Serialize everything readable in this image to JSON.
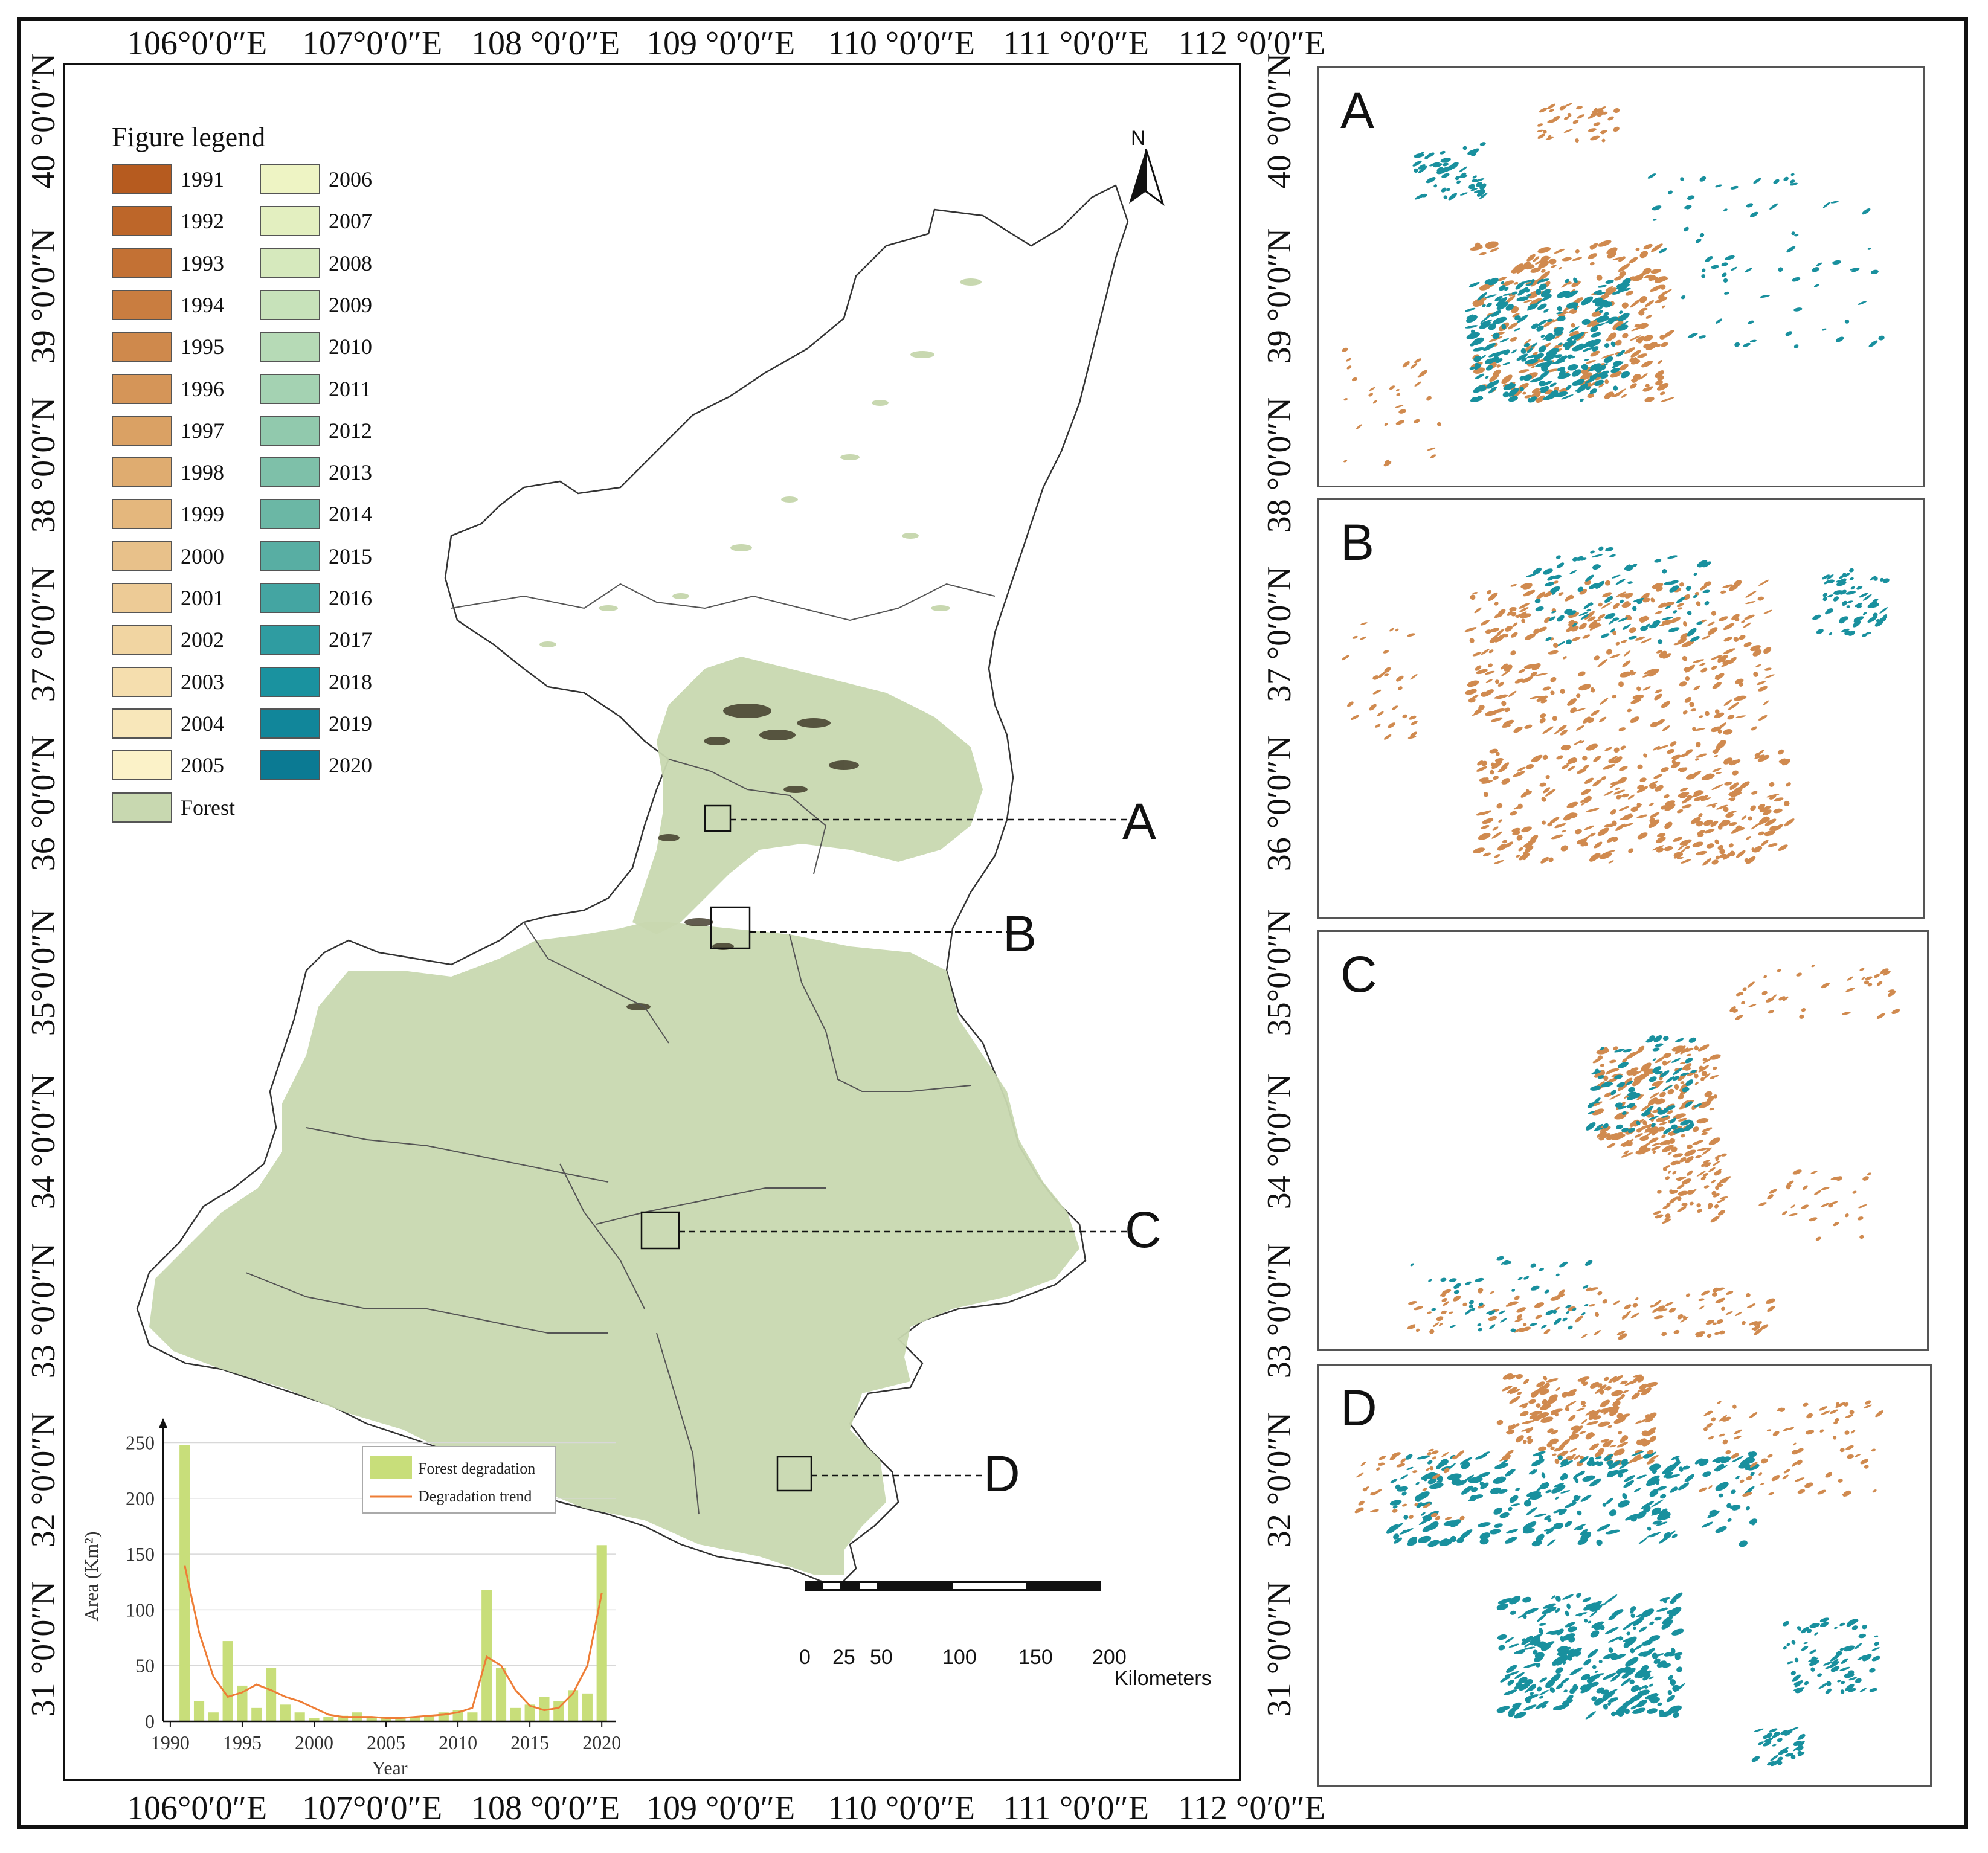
{
  "map": {
    "legend_title": "Figure legend",
    "legend_left": [
      {
        "label": "1991",
        "color": "#b65b1f"
      },
      {
        "label": "1992",
        "color": "#bd6629"
      },
      {
        "label": "1993",
        "color": "#c37134"
      },
      {
        "label": "1994",
        "color": "#c97d40"
      },
      {
        "label": "1995",
        "color": "#cf894c"
      },
      {
        "label": "1996",
        "color": "#d59558"
      },
      {
        "label": "1997",
        "color": "#daa164"
      },
      {
        "label": "1998",
        "color": "#dfac70"
      },
      {
        "label": "1999",
        "color": "#e4b77d"
      },
      {
        "label": "2000",
        "color": "#e8c18a"
      },
      {
        "label": "2001",
        "color": "#edcb96"
      },
      {
        "label": "2002",
        "color": "#f1d5a2"
      },
      {
        "label": "2003",
        "color": "#f5deae"
      },
      {
        "label": "2004",
        "color": "#f8e7ba"
      },
      {
        "label": "2005",
        "color": "#fbf2c8"
      },
      {
        "label": "Forest",
        "color": "#c8d8b0"
      }
    ],
    "legend_right": [
      {
        "label": "2006",
        "color": "#eef4c4"
      },
      {
        "label": "2007",
        "color": "#e3efc0"
      },
      {
        "label": "2008",
        "color": "#d6e9bd"
      },
      {
        "label": "2009",
        "color": "#c7e2ba"
      },
      {
        "label": "2010",
        "color": "#b6dab6"
      },
      {
        "label": "2011",
        "color": "#a4d2b2"
      },
      {
        "label": "2012",
        "color": "#91c9ad"
      },
      {
        "label": "2013",
        "color": "#7ec0a9"
      },
      {
        "label": "2014",
        "color": "#6bb7a5"
      },
      {
        "label": "2015",
        "color": "#58aea3"
      },
      {
        "label": "2016",
        "color": "#44a5a2"
      },
      {
        "label": "2017",
        "color": "#2f9ca1"
      },
      {
        "label": "2018",
        "color": "#1a929f"
      },
      {
        "label": "2019",
        "color": "#11869a"
      },
      {
        "label": "2020",
        "color": "#0b7a93"
      }
    ],
    "lon_labels": [
      "106°0′0″E",
      "107°0′0″E",
      "108 °0′0″E",
      "109 °0′0″E",
      "110 °0′0″E",
      "111 °0′0″E",
      "112 °0′0″E"
    ],
    "lat_labels": [
      "40 °0′0″N",
      "39 °0′0″N",
      "38 °0′0″N",
      "37 °0′0″N",
      "36 °0′0″N",
      "35°0′0″N",
      "34 °0′0″N",
      "33 °0′0″N",
      "32 °0′0″N",
      "31 °0′0″N"
    ],
    "callouts": [
      "A",
      "B",
      "C",
      "D"
    ],
    "north_label": "N",
    "scale": {
      "ticks": [
        "0",
        "25",
        "50",
        "100",
        "150",
        "200"
      ],
      "unit": "Kilometers"
    },
    "colors": {
      "forest": "#c8d8b0",
      "boundary": "#333333",
      "degrade_early": "#d08a4f",
      "degrade_late": "#19909e"
    }
  },
  "chart_data": {
    "type": "bar",
    "x": [
      1991,
      1992,
      1993,
      1994,
      1995,
      1996,
      1997,
      1998,
      1999,
      2000,
      2001,
      2002,
      2003,
      2004,
      2005,
      2006,
      2007,
      2008,
      2009,
      2010,
      2011,
      2012,
      2013,
      2014,
      2015,
      2016,
      2017,
      2018,
      2019,
      2020
    ],
    "series": [
      {
        "name": "Forest degradation",
        "type": "bar",
        "color": "#c8de7a",
        "values": [
          248,
          18,
          8,
          72,
          32,
          12,
          48,
          15,
          8,
          3,
          4,
          5,
          8,
          4,
          3,
          3,
          4,
          5,
          8,
          10,
          8,
          118,
          48,
          12,
          15,
          22,
          18,
          28,
          25,
          158
        ]
      },
      {
        "name": "Degradation trend",
        "type": "line",
        "color": "#ee7d36",
        "values": [
          140,
          80,
          40,
          22,
          26,
          33,
          28,
          22,
          18,
          12,
          6,
          4,
          4,
          4,
          3,
          3,
          4,
          5,
          6,
          8,
          12,
          58,
          50,
          28,
          14,
          10,
          12,
          25,
          50,
          115
        ]
      }
    ],
    "xlabel": "Year",
    "ylabel": "Area (Km²)",
    "xticks": [
      1990,
      1995,
      2000,
      2005,
      2010,
      2015,
      2020
    ],
    "yticks": [
      0,
      50,
      100,
      150,
      200,
      250
    ],
    "xlim": [
      1989.5,
      2021
    ],
    "ylim": [
      0,
      260
    ],
    "grid": true,
    "legend_position": "top-right"
  }
}
